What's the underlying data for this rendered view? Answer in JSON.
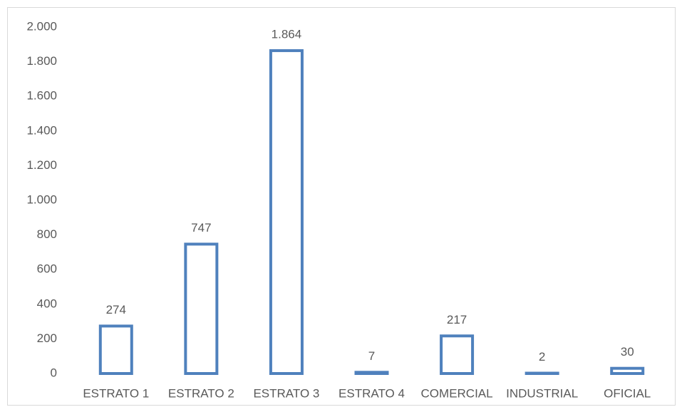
{
  "chart_data": {
    "type": "bar",
    "categories": [
      "ESTRATO 1",
      "ESTRATO 2",
      "ESTRATO 3",
      "ESTRATO 4",
      "COMERCIAL",
      "INDUSTRIAL",
      "OFICIAL"
    ],
    "values": [
      274,
      747,
      1864,
      7,
      217,
      2,
      30
    ],
    "value_labels": [
      "274",
      "747",
      "1.864",
      "7",
      "217",
      "2",
      "30"
    ],
    "color": "#4f81bd",
    "ylim": [
      0,
      2000
    ],
    "yticks": [
      0,
      200,
      400,
      600,
      800,
      {
        "value": 1000,
        "label": "1.000"
      },
      {
        "value": 1200,
        "label": "1.200"
      },
      {
        "value": 1400,
        "label": "1.400"
      },
      {
        "value": 1600,
        "label": "1.600"
      },
      {
        "value": 1800,
        "label": "1.800"
      },
      {
        "value": 2000,
        "label": "2.000"
      }
    ],
    "grid": false
  }
}
